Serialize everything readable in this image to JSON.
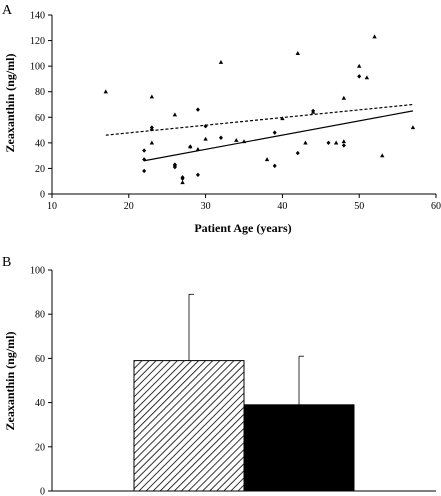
{
  "chart_data": [
    {
      "panel_label": "A",
      "type": "scatter",
      "xlabel": "Patient Age (years)",
      "ylabel": "Zeaxanthin (ng/ml)",
      "xlim": [
        10,
        60
      ],
      "ylim": [
        0,
        140
      ],
      "xticks": [
        "10",
        "20",
        "30",
        "40",
        "50",
        "60"
      ],
      "yticks": [
        "0",
        "20",
        "40",
        "60",
        "80",
        "100",
        "120",
        "140"
      ],
      "grid": false,
      "series": [
        {
          "marker": "triangle",
          "trendline": "dashed",
          "points": [
            [
              17,
              80
            ],
            [
              23,
              76
            ],
            [
              23,
              51
            ],
            [
              26,
              62
            ],
            [
              27,
              9
            ],
            [
              28,
              37
            ],
            [
              29,
              35
            ],
            [
              30,
              43
            ],
            [
              32,
              103
            ],
            [
              34,
              42
            ],
            [
              38,
              27
            ],
            [
              40,
              59
            ],
            [
              42,
              110
            ],
            [
              44,
              64
            ],
            [
              47,
              40
            ],
            [
              48,
              41
            ],
            [
              48,
              75
            ],
            [
              50,
              100
            ],
            [
              51,
              91
            ],
            [
              52,
              123
            ],
            [
              53,
              30
            ],
            [
              57,
              52
            ],
            [
              43,
              40
            ],
            [
              35,
              41
            ],
            [
              23,
              40
            ]
          ]
        },
        {
          "marker": "diamond",
          "trendline": "solid",
          "points": [
            [
              22,
              18
            ],
            [
              22,
              27
            ],
            [
              22,
              34
            ],
            [
              23,
              52
            ],
            [
              26,
              21
            ],
            [
              26,
              23
            ],
            [
              27,
              12
            ],
            [
              27,
              13
            ],
            [
              28,
              37
            ],
            [
              29,
              15
            ],
            [
              29,
              66
            ],
            [
              30,
              53
            ],
            [
              32,
              44
            ],
            [
              39,
              22
            ],
            [
              39,
              48
            ],
            [
              42,
              32
            ],
            [
              44,
              65
            ],
            [
              46,
              40
            ],
            [
              48,
              38
            ],
            [
              50,
              92
            ],
            [
              26,
              22
            ]
          ]
        }
      ],
      "trendlines": [
        {
          "style": "dashed",
          "x": [
            17,
            57
          ],
          "y": [
            46,
            70
          ]
        },
        {
          "style": "solid",
          "x": [
            22,
            57
          ],
          "y": [
            26,
            65
          ]
        }
      ]
    },
    {
      "panel_label": "B",
      "type": "bar",
      "xlabel": "",
      "ylabel": "Zeaxanthin (ng/ml)",
      "ylim": [
        0,
        100
      ],
      "yticks": [
        "0",
        "20",
        "40",
        "60",
        "80",
        "100"
      ],
      "grid": false,
      "bars": [
        {
          "value": 59,
          "error": 30,
          "fill": "hatched"
        },
        {
          "value": 39,
          "error": 22,
          "fill": "#000000"
        }
      ]
    }
  ]
}
